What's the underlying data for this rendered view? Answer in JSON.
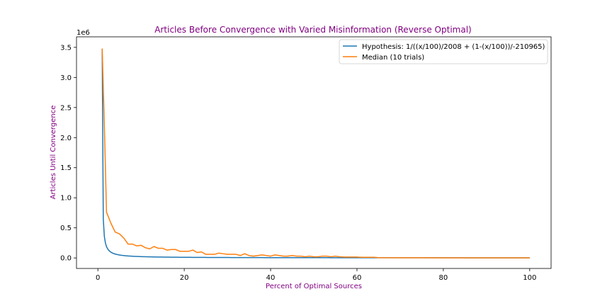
{
  "chart_data": {
    "type": "line",
    "title": "Articles Before Convergence with Varied Misinformation (Reverse Optimal)",
    "xlabel": "Percent of Optimal Sources",
    "ylabel": "Articles Until Convergence",
    "y_offset_label": "1e6",
    "xlim": [
      -4.95,
      104.95
    ],
    "ylim": [
      -0.175,
      3.675
    ],
    "x_ticks": [
      0,
      20,
      40,
      60,
      80,
      100
    ],
    "y_ticks": [
      0.0,
      0.5,
      1.0,
      1.5,
      2.0,
      2.5,
      3.0,
      3.5
    ],
    "y_tick_labels": [
      "0.0",
      "0.5",
      "1.0",
      "1.5",
      "2.0",
      "2.5",
      "3.0",
      "3.5"
    ],
    "grid": false,
    "legend_placement": "top-right",
    "title_color": "#800080",
    "label_color": "#800080",
    "series": [
      {
        "name": "Hypothesis: 1/((x/100)/2008 + (1-(x/100))/-210965)",
        "color": "#1f77b4",
        "formula": "hypothesis",
        "x": [
          1,
          100
        ]
      },
      {
        "name": "Median (10 trials)",
        "color": "#ff7f0e",
        "x": [
          1,
          1.5,
          2,
          3,
          4,
          5,
          6,
          7,
          8,
          9,
          10,
          11,
          12,
          13,
          14,
          15,
          16,
          17,
          18,
          19,
          20,
          21,
          22,
          23,
          24,
          25,
          26,
          27,
          28,
          29,
          30,
          31,
          32,
          33,
          34,
          35,
          36,
          37,
          38,
          39,
          40,
          41,
          42,
          43,
          44,
          45,
          46,
          47,
          48,
          49,
          50,
          51,
          52,
          53,
          54,
          55,
          56,
          57,
          58,
          59,
          60,
          61,
          62,
          63,
          64,
          65,
          70,
          75,
          80,
          85,
          90,
          95,
          100
        ],
        "values": [
          3.48,
          2.2,
          0.76,
          0.58,
          0.43,
          0.4,
          0.33,
          0.23,
          0.23,
          0.2,
          0.21,
          0.17,
          0.15,
          0.19,
          0.16,
          0.16,
          0.13,
          0.14,
          0.14,
          0.11,
          0.11,
          0.11,
          0.13,
          0.09,
          0.1,
          0.06,
          0.06,
          0.06,
          0.08,
          0.07,
          0.06,
          0.06,
          0.06,
          0.04,
          0.07,
          0.04,
          0.03,
          0.04,
          0.05,
          0.04,
          0.03,
          0.05,
          0.04,
          0.03,
          0.03,
          0.04,
          0.03,
          0.03,
          0.02,
          0.03,
          0.02,
          0.02,
          0.03,
          0.03,
          0.02,
          0.03,
          0.02,
          0.015,
          0.015,
          0.015,
          0.015,
          0.01,
          0.01,
          0.01,
          0.01,
          0.005,
          0.003,
          0.003,
          0.002,
          0.002,
          0.001,
          0.001,
          0.001
        ]
      }
    ]
  }
}
